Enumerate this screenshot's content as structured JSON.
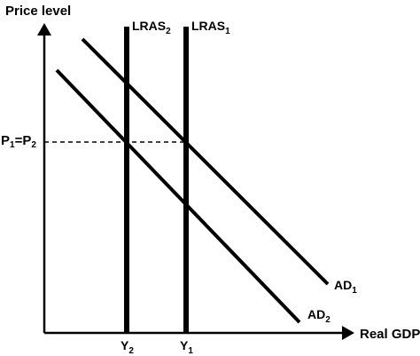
{
  "title_axis_y": "Price level",
  "title_axis_x": "Real GDP",
  "price_label": {
    "p1": "P",
    "p1_sub": "1",
    "eq": "=P",
    "p2_sub": "2"
  },
  "lras_labels": {
    "lras2_main": "LRAS",
    "lras2_sub": "2",
    "lras1_main": "LRAS",
    "lras1_sub": "1"
  },
  "ad_labels": {
    "ad1_main": "AD",
    "ad1_sub": "1",
    "ad2_main": "AD",
    "ad2_sub": "2"
  },
  "y_labels": {
    "y2_main": "Y",
    "y2_sub": "2",
    "y1_main": "Y",
    "y1_sub": "1"
  },
  "colors": {
    "ink": "#000000",
    "background": "#ffffff"
  }
}
